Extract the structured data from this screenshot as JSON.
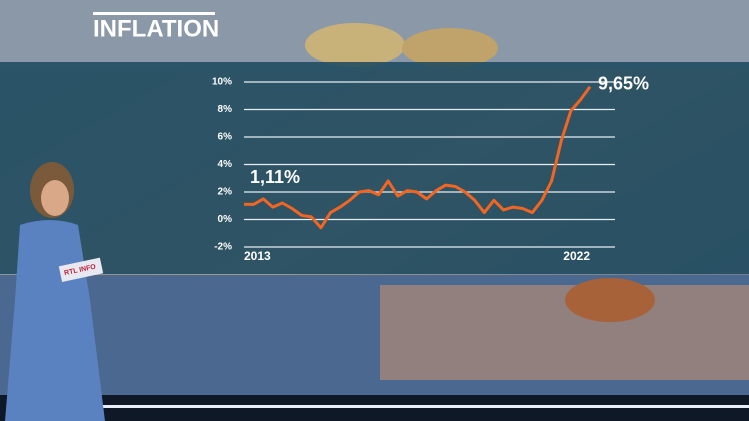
{
  "chart_data": {
    "type": "line",
    "title": "INFLATION",
    "categories": [
      "2013",
      null,
      null,
      null,
      null,
      null,
      null,
      null,
      null,
      null,
      null,
      null,
      null,
      null,
      null,
      null,
      null,
      null,
      null,
      null,
      null,
      null,
      null,
      null,
      null,
      null,
      null,
      null,
      null,
      null,
      null,
      null,
      null,
      null,
      null,
      null,
      "2022"
    ],
    "values": [
      1.11,
      1.1,
      1.5,
      0.9,
      1.2,
      0.8,
      0.3,
      0.2,
      -0.6,
      0.5,
      0.9,
      1.4,
      2.0,
      2.1,
      1.8,
      2.8,
      1.7,
      2.1,
      2.0,
      1.5,
      2.1,
      2.5,
      2.4,
      2.0,
      1.4,
      0.5,
      1.4,
      0.7,
      0.9,
      0.8,
      0.5,
      1.4,
      2.8,
      5.7,
      7.9,
      8.7,
      9.65
    ],
    "value_labels": [
      "1,11%",
      null,
      null,
      null,
      null,
      null,
      null,
      null,
      null,
      null,
      null,
      null,
      null,
      null,
      null,
      null,
      null,
      null,
      null,
      null,
      null,
      null,
      null,
      null,
      null,
      null,
      null,
      null,
      null,
      null,
      null,
      null,
      null,
      null,
      null,
      null,
      "9,65%"
    ],
    "color": "#f26522",
    "ylim": [
      -2,
      10
    ],
    "yticks": [
      {
        "value": -2,
        "label": "-2%"
      },
      {
        "value": 0,
        "label": "0%"
      },
      {
        "value": 2,
        "label": "2%"
      },
      {
        "value": 4,
        "label": "4%"
      },
      {
        "value": 6,
        "label": "6%"
      },
      {
        "value": 8,
        "label": "8%"
      },
      {
        "value": 10,
        "label": "10%"
      }
    ],
    "grid": true
  },
  "card_text": "RTL INFO"
}
